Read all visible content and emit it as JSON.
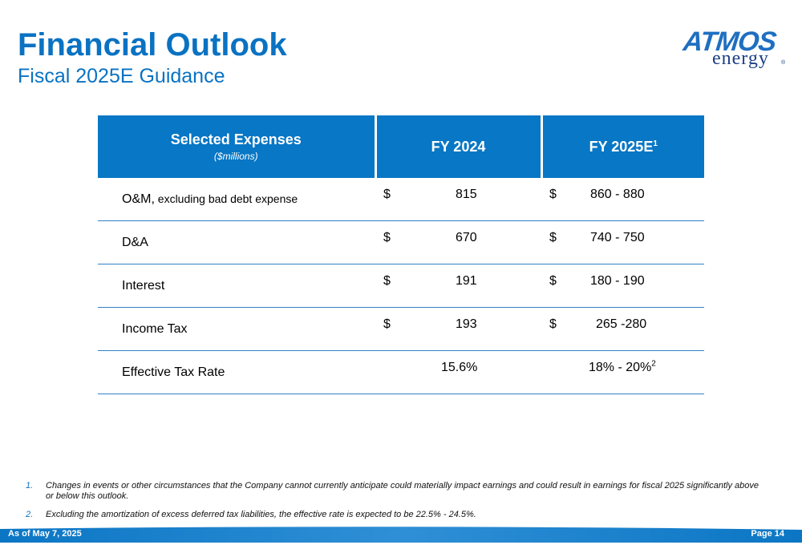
{
  "header": {
    "title": "Financial Outlook",
    "subtitle": "Fiscal 2025E Guidance"
  },
  "logo": {
    "line1": "ATMOS",
    "line2": "energy",
    "mark": "®"
  },
  "table": {
    "col1": "Selected Expenses",
    "col1_note": "($millions)",
    "col2": "FY 2024",
    "col3": "FY 2025E",
    "col3_sup": "1",
    "rows": [
      {
        "label": "O&M,",
        "label_note": " excluding bad debt expense",
        "cur24": "$",
        "fy24": "815",
        "cur25": "$",
        "fy25": "860 - 880"
      },
      {
        "label": "D&A",
        "cur24": "$",
        "fy24": "670",
        "cur25": "$",
        "fy25": "740 - 750"
      },
      {
        "label": "Interest",
        "cur24": "$",
        "fy24": "191",
        "cur25": "$",
        "fy25": "180 - 190"
      },
      {
        "label": "Income Tax",
        "cur24": "$",
        "fy24": "193",
        "cur25": "$",
        "fy25": "265 -280"
      },
      {
        "label": "Effective Tax Rate",
        "fy24": "15.6%",
        "fy25": "18% - 20%",
        "fy25_sup": "2"
      }
    ]
  },
  "footnotes": [
    {
      "num": "1.",
      "text": "Changes in events or other circumstances that the Company cannot currently anticipate could materially impact earnings and could result in earnings for fiscal 2025 significantly above or below this outlook."
    },
    {
      "num": "2.",
      "text": "Excluding the amortization of excess deferred tax liabilities, the effective rate is expected to be 22.5% - 24.5%."
    }
  ],
  "footer": {
    "date": "As of May 7, 2025",
    "page": "Page 14"
  },
  "colors": {
    "brand_blue": "#0a72c2",
    "header_fill": "#0877c5",
    "footer_blue": "#0b76c4"
  }
}
